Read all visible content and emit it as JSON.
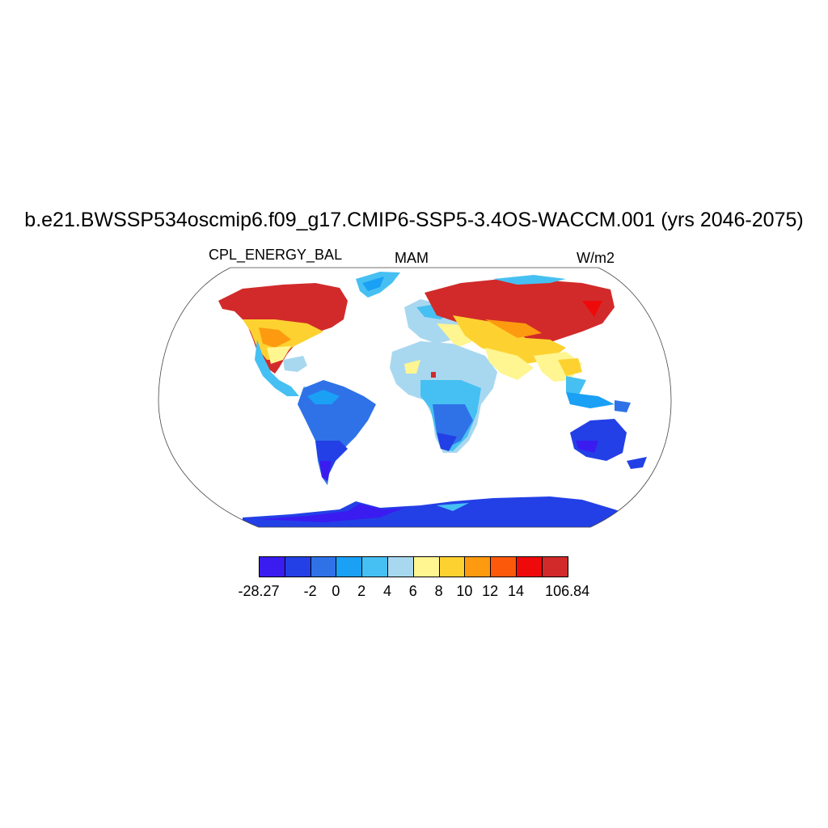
{
  "title": "b.e21.BWSSP534oscmip6.f09_g17.CMIP6-SSP5-3.4OS-WACCM.001 (yrs 2046-2075)",
  "variable": "CPL_ENERGY_BAL",
  "season": "MAM",
  "units": "W/m2",
  "colorbar": {
    "colors": [
      "#3a1cf0",
      "#2340e6",
      "#2f72e8",
      "#1aa0f5",
      "#46c0f2",
      "#a8d8f0",
      "#fff591",
      "#fdd230",
      "#fd9a10",
      "#fc5a0a",
      "#ee0a0a",
      "#d22a2a"
    ],
    "labels": [
      "-28.27",
      "-2",
      "0",
      "2",
      "4",
      "6",
      "8",
      "10",
      "12",
      "14",
      "106.84"
    ]
  }
}
